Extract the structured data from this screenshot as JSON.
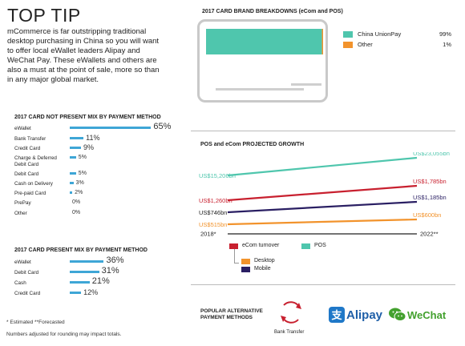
{
  "tip": {
    "title": "TOP TIP",
    "body": "mCommerce is far outstripping traditional desktop purchasing in China so you will want to offer local eWallet leaders Alipay and WeChat Pay. These eWallets and others are also a must at the point of sale, more so than in any major global market."
  },
  "colors": {
    "bar_blue": "#3ea6d6",
    "china_unionpay": "#4fc6ad",
    "other": "#f2932c",
    "ecom_red": "#c8202f",
    "desktop_orange": "#f2932c",
    "mobile_navy": "#2a1f63",
    "pos_teal": "#4fc6ad"
  },
  "card_not_present": {
    "title": "2017 CARD NOT PRESENT MIX BY PAYMENT METHOD",
    "rows": [
      {
        "label": "eWallet",
        "value": 65,
        "display": "65%"
      },
      {
        "label": "Bank Transfer",
        "value": 11,
        "display": "11%"
      },
      {
        "label": "Credit Card",
        "value": 9,
        "display": "9%"
      },
      {
        "label": "Charge & Deferred Debit Card",
        "value": 5,
        "display": "5%"
      },
      {
        "label": "Debit Card",
        "value": 5,
        "display": "5%"
      },
      {
        "label": "Cash on Delivery",
        "value": 3,
        "display": "3%"
      },
      {
        "label": "Pre-paid Card",
        "value": 2,
        "display": "2%"
      },
      {
        "label": "PrePay",
        "value": 0,
        "display": "0%"
      },
      {
        "label": "Other",
        "value": 0,
        "display": "0%"
      }
    ]
  },
  "card_present": {
    "title": "2017 CARD PRESENT MIX BY PAYMENT METHOD",
    "rows": [
      {
        "label": "eWallet",
        "value": 36,
        "display": "36%"
      },
      {
        "label": "Debit Card",
        "value": 31,
        "display": "31%"
      },
      {
        "label": "Cash",
        "value": 21,
        "display": "21%"
      },
      {
        "label": "Credit Card",
        "value": 12,
        "display": "12%"
      }
    ]
  },
  "footnotes": {
    "a": "* Estimated    **Forecasted",
    "b": "Numbers adjusted for rounding may impact totals."
  },
  "brand_breakdown": {
    "title": "2017 CARD BRAND BREAKDOWNS (eCom and POS)",
    "items": [
      {
        "label": "China UnionPay",
        "display": "99%",
        "value": 99,
        "color": "#4fc6ad"
      },
      {
        "label": "Other",
        "display": "1%",
        "value": 1,
        "color": "#f2932c"
      }
    ]
  },
  "growth": {
    "title": "POS and eCom PROJECTED GROWTH",
    "legend": {
      "ecom": "eCom turnover",
      "pos": "POS",
      "desktop": "Desktop",
      "mobile": "Mobile"
    }
  },
  "alt_methods": {
    "title": "POPULAR ALTERNATIVE PAYMENT METHODS",
    "bank_transfer": "Bank Transfer",
    "alipay": "Alipay",
    "wechat": "WeChat"
  },
  "chart_data": [
    {
      "type": "bar",
      "title": "2017 CARD NOT PRESENT MIX BY PAYMENT METHOD",
      "categories": [
        "eWallet",
        "Bank Transfer",
        "Credit Card",
        "Charge & Deferred Debit Card",
        "Debit Card",
        "Cash on Delivery",
        "Pre-paid Card",
        "PrePay",
        "Other"
      ],
      "values": [
        65,
        11,
        9,
        5,
        5,
        3,
        2,
        0,
        0
      ]
    },
    {
      "type": "bar",
      "title": "2017 CARD PRESENT MIX BY PAYMENT METHOD",
      "categories": [
        "eWallet",
        "Debit Card",
        "Cash",
        "Credit Card"
      ],
      "values": [
        36,
        31,
        21,
        12
      ]
    },
    {
      "type": "bar",
      "title": "2017 CARD BRAND BREAKDOWNS (eCom and POS)",
      "categories": [
        "China UnionPay",
        "Other"
      ],
      "values": [
        99,
        1
      ]
    },
    {
      "type": "line",
      "title": "POS and eCom PROJECTED GROWTH",
      "x": [
        "2018*",
        "2022**"
      ],
      "series": [
        {
          "name": "POS",
          "values": [
            15206,
            23055
          ],
          "labels": [
            "US$15,206bn",
            "US$23,055bn"
          ],
          "color": "#4fc6ad"
        },
        {
          "name": "eCom turnover",
          "values": [
            1260,
            1785
          ],
          "labels": [
            "US$1,260bn",
            "US$1,785bn"
          ],
          "color": "#c8202f"
        },
        {
          "name": "Mobile",
          "values": [
            746,
            1185
          ],
          "labels": [
            "US$746bn",
            "US$1,185bn"
          ],
          "color": "#2a1f63"
        },
        {
          "name": "Desktop",
          "values": [
            515,
            600
          ],
          "labels": [
            "US$515bn",
            "US$600bn"
          ],
          "color": "#f2932c"
        }
      ]
    }
  ]
}
